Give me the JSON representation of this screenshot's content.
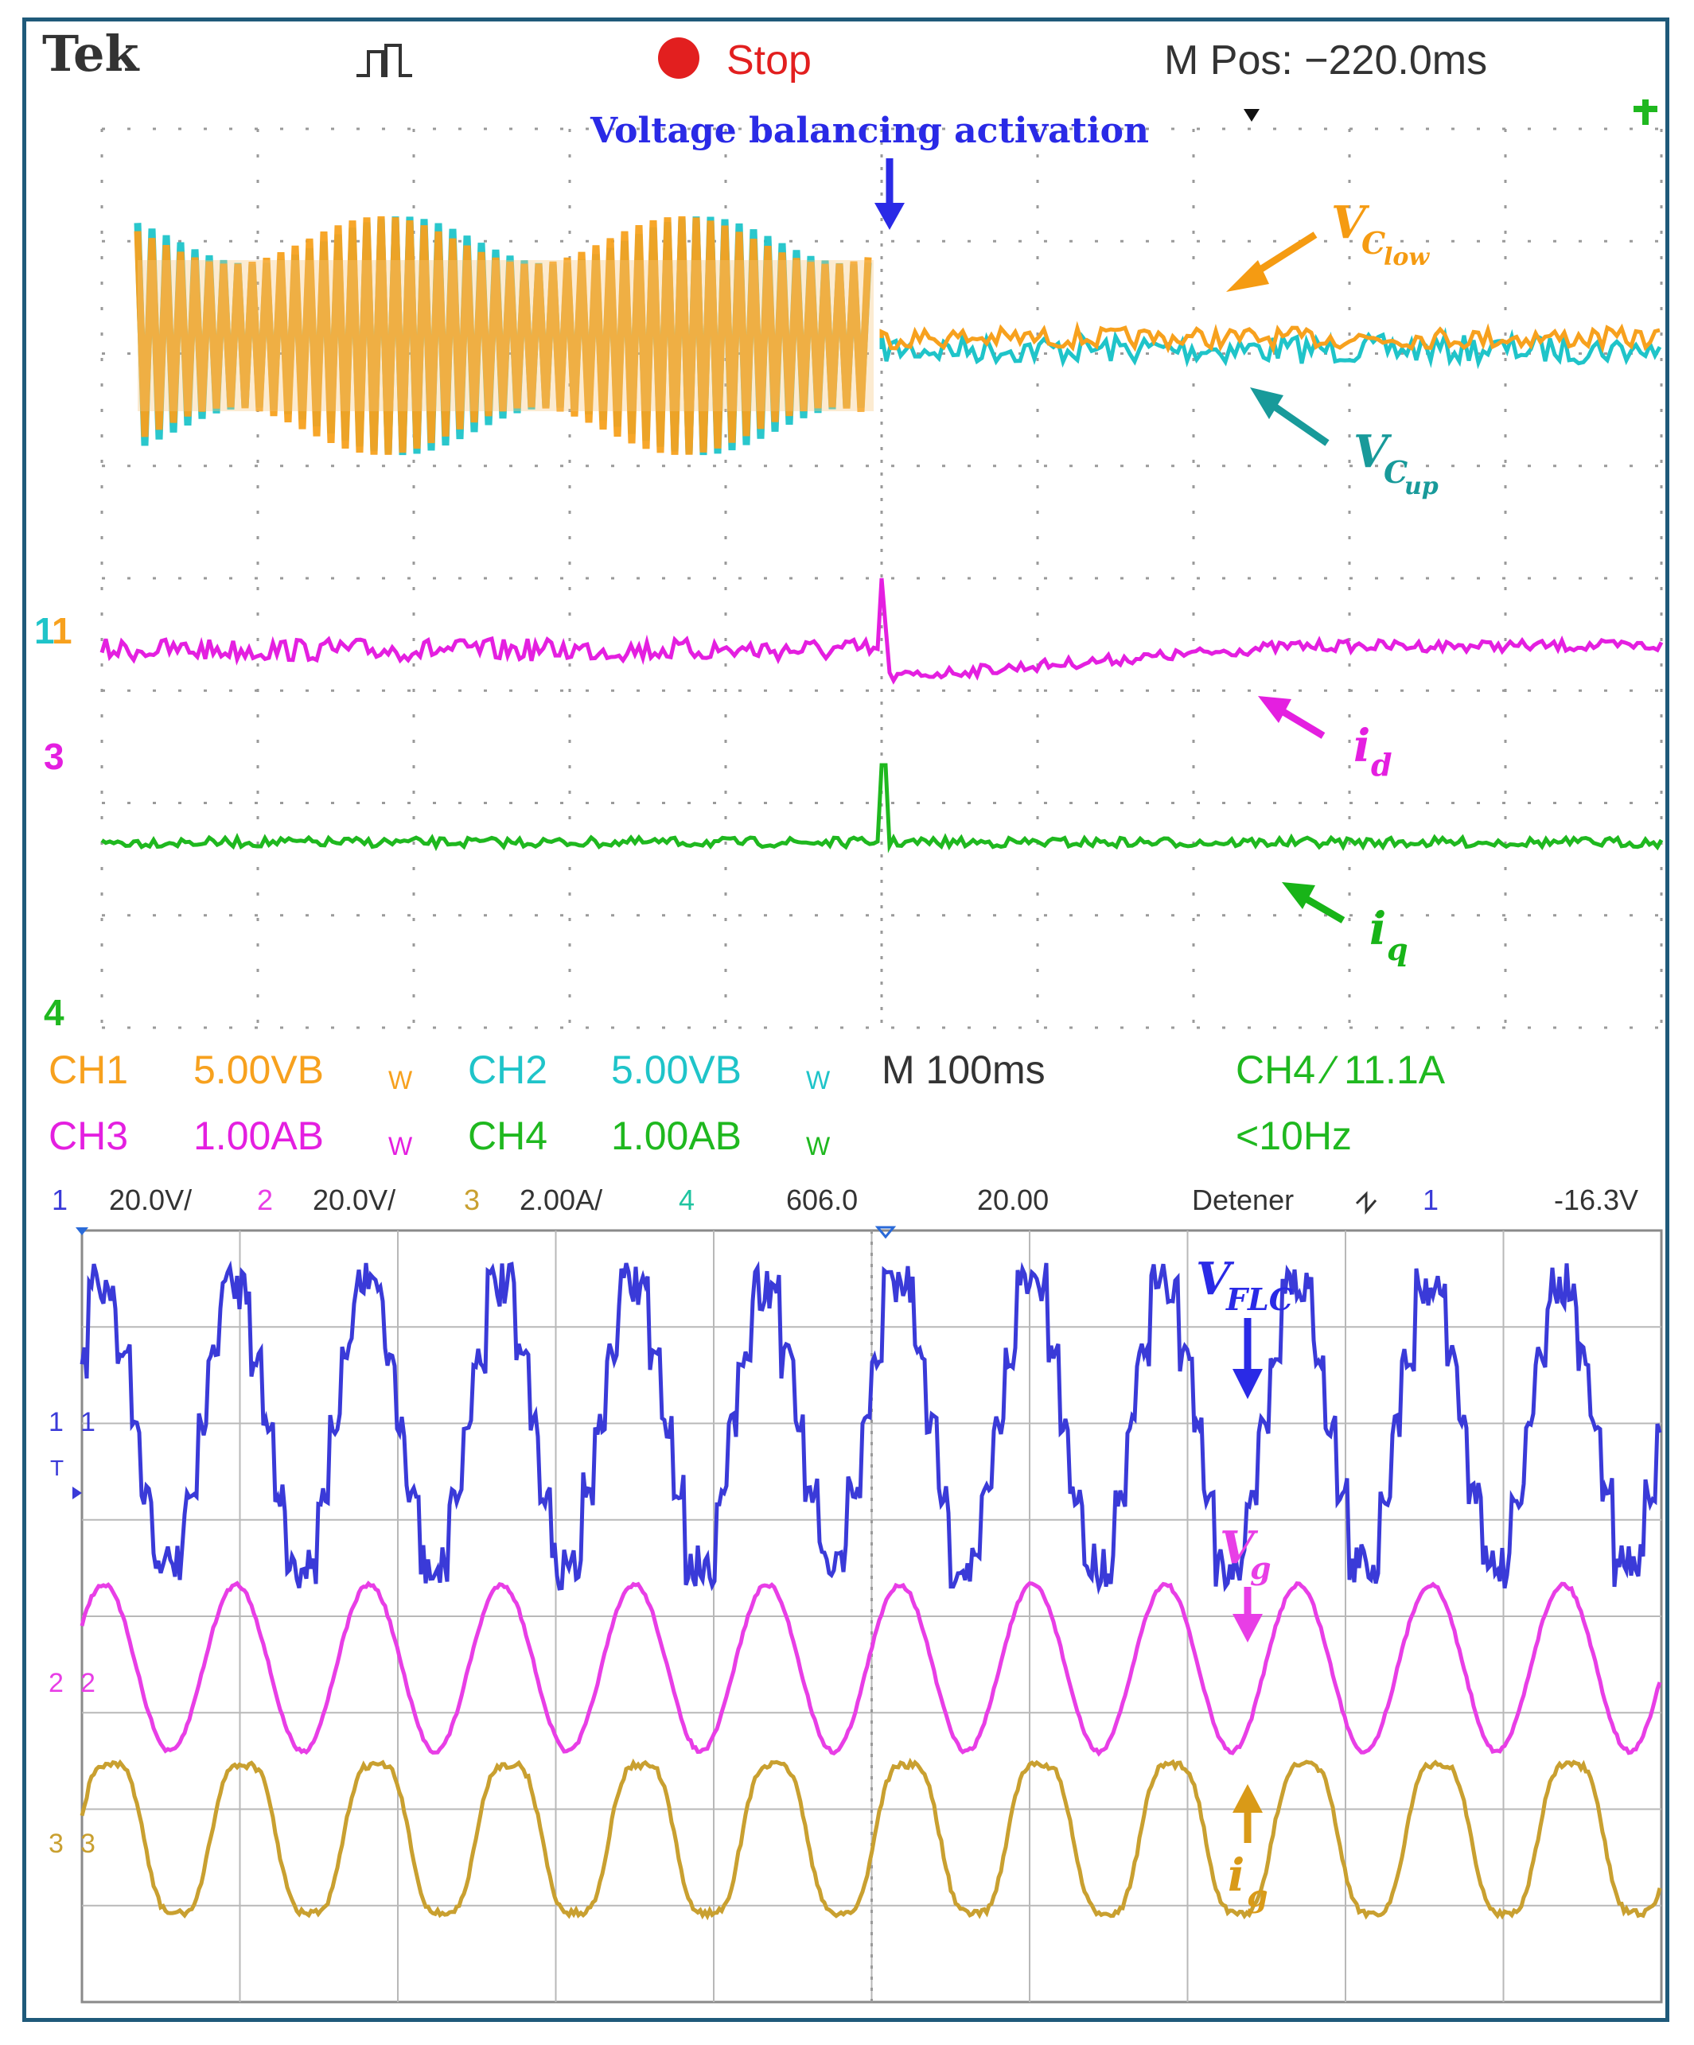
{
  "scope1": {
    "brand": "Tek",
    "status": "Stop",
    "mpos": "M Pos: −220.0ms",
    "settings": {
      "ch1_label": "CH1",
      "ch1_value": "5.00VB",
      "ch2_label": "CH2",
      "ch2_value": "5.00VB",
      "ch3_label": "CH3",
      "ch3_value": "1.00AB",
      "ch4_label": "CH4",
      "ch4_value": "1.00AB",
      "timebase": "M 100ms",
      "trigger": "CH4 ∕ 11.1A",
      "trigger_freq": "<10Hz",
      "bw": "W"
    },
    "markers": {
      "m12": "1",
      "m3": "3",
      "m4": "4"
    }
  },
  "scope2": {
    "header": {
      "ch1": "1",
      "ch1_scale": "20.0V/",
      "ch2": "2",
      "ch2_scale": "20.0V/",
      "ch3": "3",
      "ch3_scale": "2.00A/",
      "ch4": "4",
      "offset": "606.0",
      "timebase": "20.00",
      "mode": "Detener",
      "trig_ch": "1",
      "trig_level": "-16.3V"
    },
    "markers": {
      "m1": "1",
      "m2": "2",
      "m3": "3",
      "t": "T"
    }
  },
  "colors": {
    "orange": "#f7a11e",
    "cyan": "#1fc4c9",
    "magenta": "#e41fe0",
    "green": "#1fb81f",
    "blue": "#3a3ad8",
    "pink": "#e83ee6",
    "gold": "#c9a030",
    "annot_blue": "#2a2ae6",
    "annot_orange": "#f59b12",
    "annot_teal": "#189a9a",
    "annot_green": "#18b418"
  },
  "chart_data": [
    {
      "type": "line",
      "title": "",
      "annotation": "Voltage balancing activation",
      "x_divisions": 10,
      "x_unit": "ms",
      "timebase_ms_per_div": 100,
      "balancing_activation_div": 5,
      "series": [
        {
          "name": "V_C_low",
          "label_main": "V",
          "label_sub": "C",
          "label_subsub": "low",
          "channel": "CH1",
          "scale": "5.00V/div",
          "before": "large ripple",
          "after": "flat"
        },
        {
          "name": "V_C_up",
          "label_main": "V",
          "label_sub": "C",
          "label_subsub": "up",
          "channel": "CH2",
          "scale": "5.00V/div",
          "before": "large ripple",
          "after": "flat"
        },
        {
          "name": "i_d",
          "label_main": "i",
          "label_sub": "d",
          "channel": "CH3",
          "scale": "1.00A/div",
          "step_at_activation": "dip then recovery"
        },
        {
          "name": "i_q",
          "label_main": "i",
          "label_sub": "q",
          "channel": "CH4",
          "scale": "1.00A/div",
          "step_at_activation": "spike"
        }
      ]
    },
    {
      "type": "line",
      "title": "",
      "x_divisions": 10,
      "cycles_shown": 12,
      "series": [
        {
          "name": "V_FLC",
          "label_main": "V",
          "label_sub": "FLC",
          "channel": "1",
          "scale": "20.0V/div",
          "shape": "multilevel staircase"
        },
        {
          "name": "V_g",
          "label_main": "V",
          "label_sub": "g",
          "channel": "2",
          "scale": "20.0V/div",
          "shape": "sinusoid"
        },
        {
          "name": "i_g",
          "label_main": "i",
          "label_sub": "g",
          "channel": "3",
          "scale": "2.00A/div",
          "shape": "sinusoid"
        }
      ]
    }
  ]
}
